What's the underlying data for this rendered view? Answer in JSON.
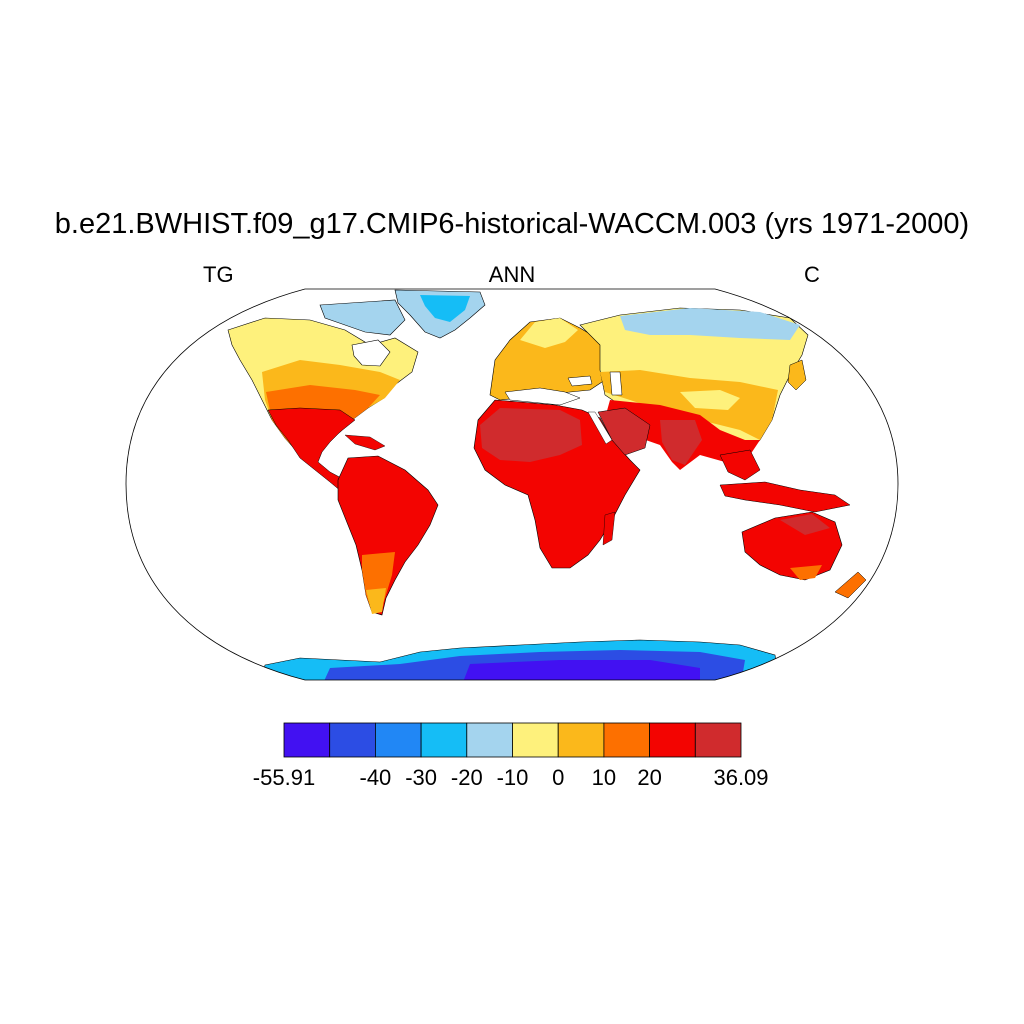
{
  "title": "b.e21.BWHIST.f09_g17.CMIP6-historical-WACCM.003 (yrs 1971-2000)",
  "left_label": "TG",
  "center_label": "ANN",
  "right_label": "C",
  "colorbar": {
    "colors": [
      "#4211f2",
      "#2c4de4",
      "#2187f5",
      "#15bdf6",
      "#a4d4ee",
      "#fef17c",
      "#fbb81b",
      "#fd7000",
      "#f30401",
      "#d02b2d"
    ],
    "tick_labels": [
      "-55.91",
      "-40",
      "-30",
      "-20",
      "-10",
      "0",
      "10",
      "20",
      "36.09"
    ],
    "tick_positions": [
      0,
      2,
      3,
      4,
      5,
      6,
      7,
      8,
      10
    ]
  }
}
